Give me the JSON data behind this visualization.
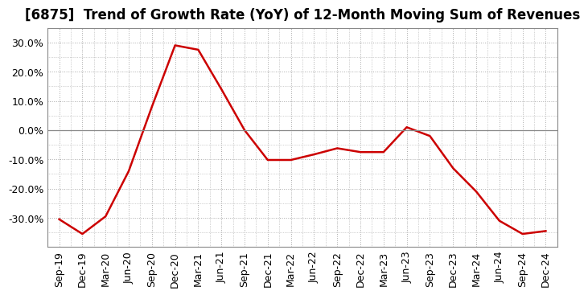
{
  "title": "[6875]  Trend of Growth Rate (YoY) of 12-Month Moving Sum of Revenues",
  "line_color": "#cc0000",
  "background_color": "#ffffff",
  "grid_color": "#aaaaaa",
  "zero_line_color": "#888888",
  "xlabels": [
    "Sep-19",
    "Dec-19",
    "Mar-20",
    "Jun-20",
    "Sep-20",
    "Dec-20",
    "Mar-21",
    "Jun-21",
    "Sep-21",
    "Dec-21",
    "Mar-22",
    "Jun-22",
    "Sep-22",
    "Dec-22",
    "Mar-23",
    "Jun-23",
    "Sep-23",
    "Dec-23",
    "Mar-24",
    "Jun-24",
    "Sep-24",
    "Dec-24"
  ],
  "yvalues": [
    -0.305,
    -0.355,
    -0.295,
    -0.14,
    0.08,
    0.29,
    0.275,
    0.14,
    0.0,
    -0.102,
    -0.102,
    -0.083,
    -0.062,
    -0.075,
    -0.075,
    0.01,
    -0.02,
    -0.13,
    -0.21,
    -0.31,
    -0.355,
    -0.345
  ],
  "ylim": [
    -0.4,
    0.35
  ],
  "yticks": [
    -0.3,
    -0.2,
    -0.1,
    0.0,
    0.1,
    0.2,
    0.3
  ],
  "title_fontsize": 12,
  "tick_fontsize": 9,
  "line_width": 1.8
}
